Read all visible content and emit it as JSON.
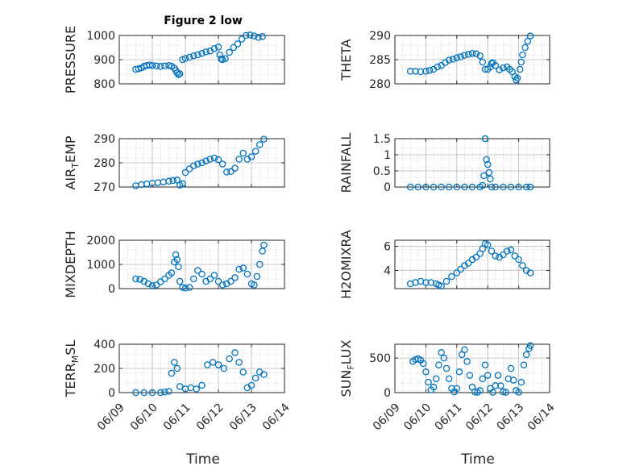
{
  "figure": {
    "title": "Figure 2 low",
    "xlabel": "Time"
  },
  "colors": {
    "marker": "#0072BD",
    "axis": "#262626",
    "grid": "#b8b8b8",
    "background": "#ffffff"
  },
  "chart_data": [
    {
      "type": "scatter",
      "ylabel": "PRESSURE",
      "xlim": [
        "06/09",
        "06/14"
      ],
      "ylim": [
        800,
        1000
      ],
      "yticks": [
        800,
        900,
        1000
      ],
      "x": [
        "06/09 12:00",
        "06/09 14:00",
        "06/09 16:00",
        "06/09 18:00",
        "06/09 20:00",
        "06/09 22:00",
        "06/10 00:00",
        "06/10 03:00",
        "06/10 06:00",
        "06/10 09:00",
        "06/10 12:00",
        "06/10 14:00",
        "06/10 16:00",
        "06/10 17:00",
        "06/10 18:00",
        "06/10 19:00",
        "06/10 20:00",
        "06/10 22:00",
        "06/11 00:00",
        "06/11 03:00",
        "06/11 06:00",
        "06/11 09:00",
        "06/11 12:00",
        "06/11 15:00",
        "06/11 18:00",
        "06/11 21:00",
        "06/12 00:00",
        "06/12 01:00",
        "06/12 02:00",
        "06/12 03:00",
        "06/12 05:00",
        "06/12 08:00",
        "06/12 11:00",
        "06/12 14:00",
        "06/12 17:00",
        "06/12 20:00",
        "06/12 23:00",
        "06/13 02:00",
        "06/13 05:00",
        "06/13 08:00"
      ],
      "y": [
        860,
        862,
        866,
        872,
        876,
        878,
        876,
        874,
        872,
        874,
        876,
        873,
        865,
        856,
        846,
        838,
        842,
        900,
        905,
        910,
        916,
        920,
        926,
        932,
        936,
        946,
        952,
        920,
        903,
        900,
        904,
        930,
        950,
        965,
        985,
        1000,
        1002,
        998,
        992,
        996
      ]
    },
    {
      "type": "scatter",
      "ylabel": "THETA",
      "xlim": [
        "06/09",
        "06/14"
      ],
      "ylim": [
        280,
        290
      ],
      "yticks": [
        280,
        285,
        290
      ],
      "x": [
        "06/09 12:00",
        "06/09 16:00",
        "06/09 20:00",
        "06/10 00:00",
        "06/10 03:00",
        "06/10 06:00",
        "06/10 09:00",
        "06/10 12:00",
        "06/10 15:00",
        "06/10 18:00",
        "06/10 21:00",
        "06/11 00:00",
        "06/11 03:00",
        "06/11 06:00",
        "06/11 09:00",
        "06/11 12:00",
        "06/11 15:00",
        "06/11 18:00",
        "06/11 20:00",
        "06/11 22:00",
        "06/12 00:00",
        "06/12 02:00",
        "06/12 03:00",
        "06/12 04:00",
        "06/12 06:00",
        "06/12 09:00",
        "06/12 12:00",
        "06/12 15:00",
        "06/12 17:00",
        "06/12 19:00",
        "06/12 21:00",
        "06/12 22:00",
        "06/12 23:00",
        "06/13 01:00",
        "06/13 02:00",
        "06/13 03:00",
        "06/13 05:00",
        "06/13 07:00",
        "06/13 09:00"
      ],
      "y": [
        282.6,
        282.6,
        282.5,
        282.6,
        282.8,
        283.0,
        283.5,
        283.8,
        284.4,
        284.9,
        285.1,
        285.4,
        285.6,
        285.9,
        286.1,
        286.3,
        286.2,
        285.8,
        284.5,
        283.0,
        283.0,
        283.5,
        284.2,
        284.4,
        283.8,
        282.9,
        283.3,
        283.5,
        283.0,
        282.5,
        281.5,
        280.8,
        281.2,
        283.0,
        284.5,
        286.0,
        287.5,
        288.8,
        289.9
      ]
    },
    {
      "type": "scatter",
      "ylabel": "AIR_TEMP",
      "xlim": [
        "06/09",
        "06/14"
      ],
      "ylim": [
        270,
        290
      ],
      "yticks": [
        270,
        280,
        290
      ],
      "x": [
        "06/09 12:00",
        "06/09 16:00",
        "06/09 20:00",
        "06/10 00:00",
        "06/10 04:00",
        "06/10 08:00",
        "06/10 12:00",
        "06/10 15:00",
        "06/10 18:00",
        "06/10 20:00",
        "06/10 22:00",
        "06/11 00:00",
        "06/11 03:00",
        "06/11 06:00",
        "06/11 09:00",
        "06/11 12:00",
        "06/11 15:00",
        "06/11 18:00",
        "06/11 21:00",
        "06/12 00:00",
        "06/12 03:00",
        "06/12 06:00",
        "06/12 09:00",
        "06/12 12:00",
        "06/12 15:00",
        "06/12 18:00",
        "06/12 21:00",
        "06/13 00:00",
        "06/13 03:00",
        "06/13 06:00",
        "06/13 09:00"
      ],
      "y": [
        270.5,
        271.0,
        271.3,
        271.6,
        271.8,
        272.1,
        272.4,
        272.7,
        272.9,
        270.8,
        271.4,
        276.0,
        277.5,
        278.8,
        279.5,
        280.0,
        280.8,
        281.5,
        282.0,
        281.3,
        279.5,
        276.2,
        276.4,
        277.8,
        281.5,
        284.0,
        281.5,
        282.5,
        284.8,
        287.5,
        289.8
      ]
    },
    {
      "type": "scatter",
      "ylabel": "RAINFALL",
      "xlim": [
        "06/09",
        "06/14"
      ],
      "ylim": [
        0,
        1.5
      ],
      "yticks": [
        0,
        0.5,
        1,
        1.5
      ],
      "x": [
        "06/09 12:00",
        "06/09 18:00",
        "06/10 00:00",
        "06/10 06:00",
        "06/10 12:00",
        "06/10 18:00",
        "06/11 00:00",
        "06/11 06:00",
        "06/11 12:00",
        "06/11 18:00",
        "06/11 20:00",
        "06/11 21:00",
        "06/11 22:00",
        "06/11 23:00",
        "06/12 00:00",
        "06/12 01:00",
        "06/12 02:00",
        "06/12 03:00",
        "06/12 06:00",
        "06/12 12:00",
        "06/12 18:00",
        "06/13 00:00",
        "06/13 06:00",
        "06/13 09:00"
      ],
      "y": [
        0,
        0,
        0,
        0,
        0,
        0,
        0,
        0,
        0,
        0,
        0.05,
        0.35,
        1.5,
        0.85,
        0.7,
        0.45,
        0.25,
        0,
        0,
        0,
        0,
        0,
        0,
        0
      ]
    },
    {
      "type": "scatter",
      "ylabel": "MIXDEPTH",
      "xlim": [
        "06/09",
        "06/14"
      ],
      "ylim": [
        0,
        2000
      ],
      "yticks": [
        0,
        1000,
        2000
      ],
      "x": [
        "06/09 12:00",
        "06/09 15:00",
        "06/09 18:00",
        "06/09 21:00",
        "06/10 00:00",
        "06/10 03:00",
        "06/10 06:00",
        "06/10 09:00",
        "06/10 12:00",
        "06/10 14:00",
        "06/10 16:00",
        "06/10 17:00",
        "06/10 18:00",
        "06/10 19:00",
        "06/10 20:00",
        "06/10 22:00",
        "06/11 00:00",
        "06/11 03:00",
        "06/11 06:00",
        "06/11 09:00",
        "06/11 12:00",
        "06/11 15:00",
        "06/11 18:00",
        "06/11 21:00",
        "06/12 00:00",
        "06/12 03:00",
        "06/12 06:00",
        "06/12 09:00",
        "06/12 12:00",
        "06/12 15:00",
        "06/12 18:00",
        "06/12 21:00",
        "06/13 00:00",
        "06/13 02:00",
        "06/13 04:00",
        "06/13 06:00",
        "06/13 08:00",
        "06/13 09:00"
      ],
      "y": [
        400,
        380,
        300,
        200,
        120,
        150,
        280,
        400,
        550,
        650,
        1100,
        1400,
        1200,
        900,
        300,
        50,
        20,
        50,
        400,
        750,
        600,
        300,
        400,
        550,
        300,
        150,
        200,
        300,
        450,
        800,
        850,
        600,
        200,
        150,
        500,
        1000,
        1550,
        1800
      ]
    },
    {
      "type": "scatter",
      "ylabel": "H2OMIXRA",
      "xlim": [
        "06/09",
        "06/14"
      ],
      "ylim": [
        2.5,
        6.5
      ],
      "yticks": [
        4,
        6
      ],
      "x": [
        "06/09 12:00",
        "06/09 16:00",
        "06/09 20:00",
        "06/10 00:00",
        "06/10 04:00",
        "06/10 08:00",
        "06/10 10:00",
        "06/10 12:00",
        "06/10 16:00",
        "06/10 20:00",
        "06/11 00:00",
        "06/11 03:00",
        "06/11 06:00",
        "06/11 09:00",
        "06/11 12:00",
        "06/11 15:00",
        "06/11 18:00",
        "06/11 20:00",
        "06/11 22:00",
        "06/12 00:00",
        "06/12 03:00",
        "06/12 06:00",
        "06/12 09:00",
        "06/12 12:00",
        "06/12 15:00",
        "06/12 18:00",
        "06/12 21:00",
        "06/13 00:00",
        "06/13 03:00",
        "06/13 06:00",
        "06/13 09:00"
      ],
      "y": [
        2.9,
        3.0,
        3.1,
        3.0,
        3.0,
        2.9,
        2.8,
        2.7,
        3.1,
        3.5,
        3.8,
        4.1,
        4.4,
        4.6,
        4.9,
        5.1,
        5.4,
        5.8,
        6.2,
        6.1,
        5.6,
        5.2,
        5.1,
        5.3,
        5.6,
        5.7,
        5.2,
        4.9,
        4.4,
        4.0,
        3.8
      ]
    },
    {
      "type": "scatter",
      "ylabel": "TERR_MSL",
      "xlim": [
        "06/09",
        "06/14"
      ],
      "ylim": [
        0,
        400
      ],
      "yticks": [
        0,
        200,
        400
      ],
      "x": [
        "06/09 12:00",
        "06/09 18:00",
        "06/10 00:00",
        "06/10 06:00",
        "06/10 09:00",
        "06/10 12:00",
        "06/10 14:00",
        "06/10 16:00",
        "06/10 18:00",
        "06/10 20:00",
        "06/11 00:00",
        "06/11 04:00",
        "06/11 08:00",
        "06/11 12:00",
        "06/11 16:00",
        "06/11 20:00",
        "06/12 00:00",
        "06/12 04:00",
        "06/12 08:00",
        "06/12 12:00",
        "06/12 15:00",
        "06/12 18:00",
        "06/12 21:00",
        "06/13 00:00",
        "06/13 03:00",
        "06/13 06:00",
        "06/13 09:00"
      ],
      "y": [
        0,
        0,
        0,
        0,
        5,
        10,
        160,
        250,
        200,
        50,
        30,
        40,
        30,
        60,
        230,
        250,
        230,
        200,
        280,
        330,
        250,
        170,
        40,
        60,
        120,
        170,
        150
      ]
    },
    {
      "type": "scatter",
      "ylabel": "SUN_FLUX",
      "xlim": [
        "06/09",
        "06/14"
      ],
      "ylim": [
        0,
        700
      ],
      "yticks": [
        0,
        500
      ],
      "x": [
        "06/09 14:00",
        "06/09 16:00",
        "06/09 18:00",
        "06/09 20:00",
        "06/09 22:00",
        "06/10 00:00",
        "06/10 02:00",
        "06/10 04:00",
        "06/10 06:00",
        "06/10 08:00",
        "06/10 10:00",
        "06/10 12:00",
        "06/10 14:00",
        "06/10 16:00",
        "06/10 18:00",
        "06/10 20:00",
        "06/10 22:00",
        "06/11 00:00",
        "06/11 02:00",
        "06/11 04:00",
        "06/11 06:00",
        "06/11 08:00",
        "06/11 10:00",
        "06/11 12:00",
        "06/11 14:00",
        "06/11 16:00",
        "06/11 18:00",
        "06/11 20:00",
        "06/11 22:00",
        "06/12 00:00",
        "06/12 02:00",
        "06/12 04:00",
        "06/12 06:00",
        "06/12 08:00",
        "06/12 10:00",
        "06/12 12:00",
        "06/12 14:00",
        "06/12 16:00",
        "06/12 18:00",
        "06/12 20:00",
        "06/12 22:00",
        "06/13 00:00",
        "06/13 02:00",
        "06/13 04:00",
        "06/13 06:00",
        "06/13 08:00",
        "06/13 09:00"
      ],
      "y": [
        450,
        480,
        490,
        470,
        420,
        300,
        150,
        40,
        80,
        200,
        400,
        580,
        500,
        350,
        200,
        60,
        10,
        60,
        300,
        550,
        620,
        450,
        250,
        80,
        10,
        5,
        30,
        200,
        400,
        250,
        60,
        5,
        100,
        250,
        100,
        10,
        5,
        200,
        350,
        180,
        30,
        5,
        150,
        400,
        550,
        640,
        680
      ]
    }
  ]
}
